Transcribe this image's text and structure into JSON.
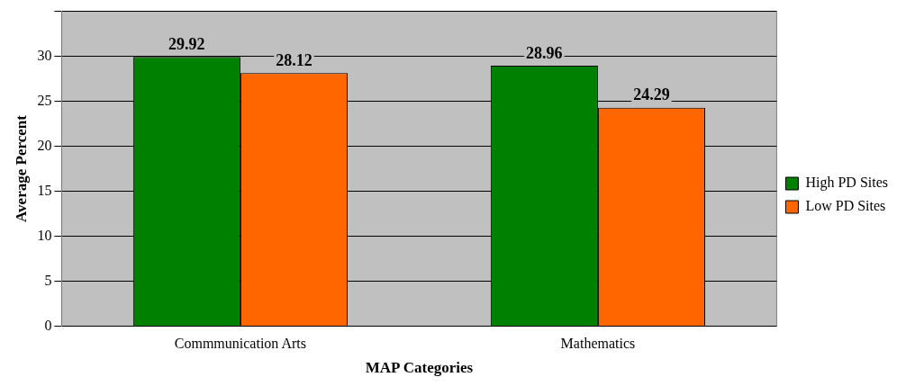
{
  "chart_data": {
    "type": "bar",
    "xlabel": "MAP Categories",
    "ylabel": "Average Percent",
    "categories": [
      "Commmunication Arts",
      "Mathematics"
    ],
    "series": [
      {
        "name": "High PD Sites",
        "color": "#008000",
        "values": [
          29.92,
          28.96
        ]
      },
      {
        "name": "Low PD Sites",
        "color": "#ff6600",
        "values": [
          28.12,
          24.29
        ]
      }
    ],
    "ylim": [
      0,
      35
    ],
    "yticks": [
      0,
      5,
      10,
      15,
      20,
      25,
      30,
      {
        "value": 35,
        "label": null
      }
    ],
    "grid": "y",
    "legend": "right",
    "data_labels": true
  }
}
